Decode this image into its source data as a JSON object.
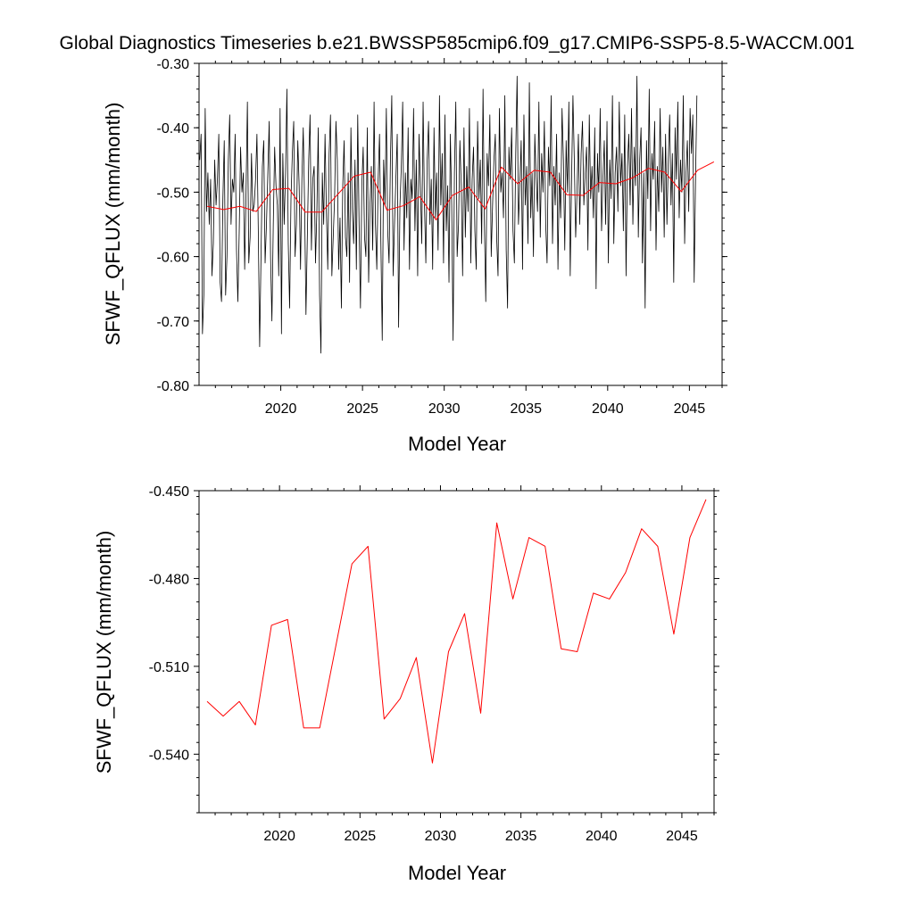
{
  "title": "Global Diagnostics Timeseries b.e21.BWSSP585cmip6.f09_g17.CMIP6-SSP5-8.5-WACCM.001",
  "colors": {
    "monthly": "#000000",
    "annual": "#ff0000"
  },
  "chart_data": [
    {
      "type": "line",
      "title": "Global Diagnostics Timeseries b.e21.BWSSP585cmip6.f09_g17.CMIP6-SSP5-8.5-WACCM.001",
      "xlabel": "Model Year",
      "ylabel": "SFWF_QFLUX (mm/month)",
      "xlim": [
        2015,
        2047
      ],
      "ylim": [
        -0.8,
        -0.3
      ],
      "xticks": [
        2020,
        2025,
        2030,
        2035,
        2040,
        2045
      ],
      "xtick_labels": [
        "2020",
        "2025",
        "2030",
        "2035",
        "2040",
        "2045"
      ],
      "yticks": [
        -0.8,
        -0.7,
        -0.6,
        -0.5,
        -0.4,
        -0.3
      ],
      "ytick_labels": [
        "-0.80",
        "-0.70",
        "-0.60",
        "-0.50",
        "-0.40",
        "-0.30"
      ],
      "monthly_start_year": 2015.0,
      "series": [
        {
          "name": "monthly",
          "color": "#000000",
          "values": [
            -0.45,
            -0.41,
            -0.72,
            -0.66,
            -0.37,
            -0.53,
            -0.47,
            -0.55,
            -0.48,
            -0.63,
            -0.58,
            -0.45,
            -0.52,
            -0.48,
            -0.41,
            -0.64,
            -0.67,
            -0.51,
            -0.42,
            -0.66,
            -0.6,
            -0.45,
            -0.38,
            -0.55,
            -0.48,
            -0.5,
            -0.41,
            -0.59,
            -0.67,
            -0.56,
            -0.43,
            -0.5,
            -0.47,
            -0.62,
            -0.5,
            -0.36,
            -0.61,
            -0.57,
            -0.44,
            -0.53,
            -0.52,
            -0.48,
            -0.41,
            -0.56,
            -0.74,
            -0.6,
            -0.46,
            -0.42,
            -0.61,
            -0.55,
            -0.47,
            -0.39,
            -0.6,
            -0.7,
            -0.55,
            -0.43,
            -0.49,
            -0.52,
            -0.63,
            -0.37,
            -0.72,
            -0.44,
            -0.55,
            -0.47,
            -0.34,
            -0.58,
            -0.68,
            -0.51,
            -0.44,
            -0.39,
            -0.6,
            -0.55,
            -0.42,
            -0.49,
            -0.62,
            -0.48,
            -0.4,
            -0.52,
            -0.69,
            -0.57,
            -0.45,
            -0.38,
            -0.59,
            -0.48,
            -0.46,
            -0.61,
            -0.53,
            -0.4,
            -0.66,
            -0.75,
            -0.47,
            -0.55,
            -0.41,
            -0.53,
            -0.62,
            -0.44,
            -0.38,
            -0.63,
            -0.57,
            -0.51,
            -0.39,
            -0.45,
            -0.62,
            -0.54,
            -0.68,
            -0.49,
            -0.42,
            -0.57,
            -0.6,
            -0.47,
            -0.64,
            -0.4,
            -0.53,
            -0.58,
            -0.45,
            -0.62,
            -0.38,
            -0.55,
            -0.68,
            -0.49,
            -0.43,
            -0.57,
            -0.6,
            -0.4,
            -0.64,
            -0.52,
            -0.46,
            -0.59,
            -0.36,
            -0.55,
            -0.62,
            -0.48,
            -0.41,
            -0.58,
            -0.73,
            -0.45,
            -0.52,
            -0.37,
            -0.56,
            -0.61,
            -0.45,
            -0.35,
            -0.63,
            -0.55,
            -0.48,
            -0.41,
            -0.71,
            -0.52,
            -0.46,
            -0.36,
            -0.59,
            -0.47,
            -0.54,
            -0.4,
            -0.62,
            -0.48,
            -0.51,
            -0.37,
            -0.56,
            -0.45,
            -0.63,
            -0.41,
            -0.49,
            -0.58,
            -0.36,
            -0.52,
            -0.61,
            -0.45,
            -0.39,
            -0.55,
            -0.48,
            -0.62,
            -0.4,
            -0.54,
            -0.47,
            -0.59,
            -0.35,
            -0.52,
            -0.44,
            -0.61,
            -0.38,
            -0.56,
            -0.49,
            -0.64,
            -0.41,
            -0.52,
            -0.73,
            -0.47,
            -0.36,
            -0.6,
            -0.55,
            -0.42,
            -0.49,
            -0.63,
            -0.4,
            -0.57,
            -0.46,
            -0.53,
            -0.37,
            -0.61,
            -0.48,
            -0.43,
            -0.56,
            -0.62,
            -0.39,
            -0.51,
            -0.45,
            -0.58,
            -0.34,
            -0.55,
            -0.67,
            -0.44,
            -0.49,
            -0.38,
            -0.6,
            -0.52,
            -0.45,
            -0.41,
            -0.57,
            -0.63,
            -0.37,
            -0.5,
            -0.47,
            -0.54,
            -0.35,
            -0.59,
            -0.68,
            -0.43,
            -0.48,
            -0.4,
            -0.56,
            -0.61,
            -0.44,
            -0.32,
            -0.55,
            -0.49,
            -0.42,
            -0.62,
            -0.38,
            -0.52,
            -0.46,
            -0.58,
            -0.33,
            -0.54,
            -0.47,
            -0.6,
            -0.41,
            -0.48,
            -0.53,
            -0.36,
            -0.57,
            -0.44,
            -0.5,
            -0.39,
            -0.55,
            -0.61,
            -0.43,
            -0.49,
            -0.35,
            -0.58,
            -0.46,
            -0.52,
            -0.41,
            -0.62,
            -0.47,
            -0.54,
            -0.37,
            -0.45,
            -0.59,
            -0.42,
            -0.5,
            -0.36,
            -0.63,
            -0.48,
            -0.35,
            -0.45,
            -0.57,
            -0.5,
            -0.41,
            -0.55,
            -0.44,
            -0.39,
            -0.52,
            -0.47,
            -0.43,
            -0.59,
            -0.38,
            -0.51,
            -0.46,
            -0.54,
            -0.4,
            -0.65,
            -0.44,
            -0.5,
            -0.37,
            -0.56,
            -0.48,
            -0.42,
            -0.55,
            -0.39,
            -0.61,
            -0.45,
            -0.51,
            -0.35,
            -0.58,
            -0.47,
            -0.43,
            -0.53,
            -0.36,
            -0.49,
            -0.44,
            -0.56,
            -0.38,
            -0.63,
            -0.46,
            -0.41,
            -0.52,
            -0.37,
            -0.55,
            -0.43,
            -0.49,
            -0.32,
            -0.57,
            -0.45,
            -0.4,
            -0.61,
            -0.47,
            -0.68,
            -0.42,
            -0.51,
            -0.34,
            -0.56,
            -0.44,
            -0.48,
            -0.39,
            -0.59,
            -0.46,
            -0.53,
            -0.37,
            -0.5,
            -0.43,
            -0.57,
            -0.41,
            -0.55,
            -0.45,
            -0.38,
            -0.52,
            -0.44,
            -0.64,
            -0.4,
            -0.48,
            -0.36,
            -0.54,
            -0.45,
            -0.5,
            -0.35,
            -0.58,
            -0.47,
            -0.42,
            -0.53,
            -0.37,
            -0.44,
            -0.38,
            -0.64,
            -0.48,
            -0.35
          ]
        },
        {
          "name": "annual mean",
          "color": "#ff0000",
          "x": [
            2015.5,
            2016.5,
            2017.5,
            2018.5,
            2019.5,
            2020.5,
            2021.5,
            2022.5,
            2023.5,
            2024.5,
            2025.5,
            2026.5,
            2027.5,
            2028.5,
            2029.5,
            2030.5,
            2031.5,
            2032.5,
            2033.5,
            2034.5,
            2035.5,
            2036.5,
            2037.5,
            2038.5,
            2039.5,
            2040.5,
            2041.5,
            2042.5,
            2043.5,
            2044.5,
            2045.5,
            2046.5
          ],
          "values": [
            -0.522,
            -0.527,
            -0.522,
            -0.53,
            -0.496,
            -0.494,
            -0.531,
            -0.531,
            -0.503,
            -0.475,
            -0.469,
            -0.528,
            -0.521,
            -0.507,
            -0.543,
            -0.505,
            -0.492,
            -0.526,
            -0.461,
            -0.487,
            -0.466,
            -0.469,
            -0.504,
            -0.505,
            -0.485,
            -0.487,
            -0.478,
            -0.463,
            -0.469,
            -0.499,
            -0.466,
            -0.453
          ]
        }
      ]
    },
    {
      "type": "line",
      "title": "",
      "xlabel": "Model Year",
      "ylabel": "SFWF_QFLUX (mm/month)",
      "xlim": [
        2015,
        2047
      ],
      "ylim": [
        -0.56,
        -0.45
      ],
      "xticks": [
        2020,
        2025,
        2030,
        2035,
        2040,
        2045
      ],
      "xtick_labels": [
        "2020",
        "2025",
        "2030",
        "2035",
        "2040",
        "2045"
      ],
      "yticks": [
        -0.54,
        -0.51,
        -0.48,
        -0.45
      ],
      "ytick_labels": [
        "-0.540",
        "-0.510",
        "-0.480",
        "-0.450"
      ],
      "series": [
        {
          "name": "annual mean",
          "color": "#ff0000",
          "x": [
            2015.5,
            2016.5,
            2017.5,
            2018.5,
            2019.5,
            2020.5,
            2021.5,
            2022.5,
            2023.5,
            2024.5,
            2025.5,
            2026.5,
            2027.5,
            2028.5,
            2029.5,
            2030.5,
            2031.5,
            2032.5,
            2033.5,
            2034.5,
            2035.5,
            2036.5,
            2037.5,
            2038.5,
            2039.5,
            2040.5,
            2041.5,
            2042.5,
            2043.5,
            2044.5,
            2045.5,
            2046.5
          ],
          "values": [
            -0.522,
            -0.527,
            -0.522,
            -0.53,
            -0.496,
            -0.494,
            -0.531,
            -0.531,
            -0.503,
            -0.475,
            -0.469,
            -0.528,
            -0.521,
            -0.507,
            -0.543,
            -0.505,
            -0.492,
            -0.526,
            -0.461,
            -0.487,
            -0.466,
            -0.469,
            -0.504,
            -0.505,
            -0.485,
            -0.487,
            -0.478,
            -0.463,
            -0.469,
            -0.499,
            -0.466,
            -0.453
          ]
        }
      ]
    }
  ]
}
